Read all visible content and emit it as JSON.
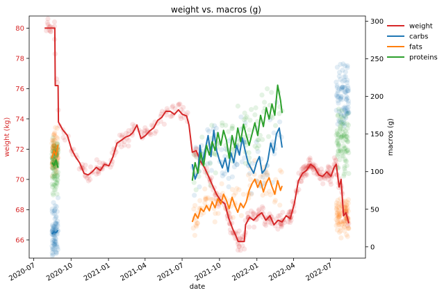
{
  "chart_data": {
    "type": "line",
    "title": "weight vs. macros (g)",
    "xlabel": "date",
    "ylabel_left": "weight (kg)",
    "ylabel_right": "macros (g)",
    "xlim": [
      "2020-06-20",
      "2022-09-25"
    ],
    "ylim_left": [
      64.8,
      80.8
    ],
    "ylim_right": [
      -15,
      307
    ],
    "x_ticks": [
      "2020-07",
      "2020-10",
      "2021-01",
      "2021-04",
      "2021-07",
      "2021-10",
      "2022-01",
      "2022-04",
      "2022-07"
    ],
    "y_ticks_left": [
      66,
      68,
      70,
      72,
      74,
      76,
      78,
      80
    ],
    "y_ticks_right": [
      0,
      50,
      100,
      150,
      200,
      250,
      300
    ],
    "grid": false,
    "legend_position": "outside-top-right",
    "colors": {
      "weight": "#d62728",
      "carbs": "#1f77b4",
      "fats": "#ff7f0e",
      "proteins": "#2ca02c",
      "left_axis_text": "#d62728"
    },
    "series": [
      {
        "name": "weight",
        "axis": "left",
        "color": "#d62728",
        "points": [
          [
            "2020-07-28",
            80.0
          ],
          [
            "2020-08-22",
            80.0
          ],
          [
            "2020-08-23",
            76.2
          ],
          [
            "2020-08-30",
            76.2
          ],
          [
            "2020-08-31",
            73.8
          ],
          [
            "2020-09-10",
            73.3
          ],
          [
            "2020-09-22",
            72.9
          ],
          [
            "2020-10-02",
            72.0
          ],
          [
            "2020-10-12",
            71.5
          ],
          [
            "2020-10-22",
            71.1
          ],
          [
            "2020-11-02",
            70.4
          ],
          [
            "2020-11-12",
            70.3
          ],
          [
            "2020-11-22",
            70.5
          ],
          [
            "2020-12-02",
            70.8
          ],
          [
            "2020-12-12",
            70.6
          ],
          [
            "2020-12-22",
            71.0
          ],
          [
            "2021-01-02",
            70.9
          ],
          [
            "2021-01-12",
            71.5
          ],
          [
            "2021-01-22",
            72.4
          ],
          [
            "2021-02-02",
            72.6
          ],
          [
            "2021-02-12",
            72.8
          ],
          [
            "2021-02-22",
            72.9
          ],
          [
            "2021-03-02",
            73.1
          ],
          [
            "2021-03-12",
            73.6
          ],
          [
            "2021-03-22",
            72.7
          ],
          [
            "2021-04-02",
            72.9
          ],
          [
            "2021-04-12",
            73.2
          ],
          [
            "2021-04-22",
            73.4
          ],
          [
            "2021-05-02",
            73.9
          ],
          [
            "2021-05-12",
            74.1
          ],
          [
            "2021-05-22",
            74.5
          ],
          [
            "2021-06-02",
            74.5
          ],
          [
            "2021-06-12",
            74.3
          ],
          [
            "2021-06-22",
            74.6
          ],
          [
            "2021-07-02",
            74.3
          ],
          [
            "2021-07-12",
            74.2
          ],
          [
            "2021-07-18",
            73.6
          ],
          [
            "2021-07-26",
            71.8
          ],
          [
            "2021-08-05",
            71.9
          ],
          [
            "2021-08-15",
            71.2
          ],
          [
            "2021-08-25",
            70.8
          ],
          [
            "2021-09-04",
            70.2
          ],
          [
            "2021-09-14",
            69.6
          ],
          [
            "2021-09-24",
            69.0
          ],
          [
            "2021-10-04",
            68.6
          ],
          [
            "2021-10-14",
            68.4
          ],
          [
            "2021-10-24",
            67.4
          ],
          [
            "2021-11-03",
            66.7
          ],
          [
            "2021-11-10",
            66.3
          ],
          [
            "2021-11-16",
            65.9
          ],
          [
            "2021-12-01",
            65.9
          ],
          [
            "2021-12-04",
            67.0
          ],
          [
            "2021-12-14",
            67.5
          ],
          [
            "2021-12-24",
            67.3
          ],
          [
            "2022-01-03",
            67.6
          ],
          [
            "2022-01-13",
            67.8
          ],
          [
            "2022-01-23",
            67.3
          ],
          [
            "2022-02-02",
            67.6
          ],
          [
            "2022-02-12",
            67.0
          ],
          [
            "2022-02-22",
            67.3
          ],
          [
            "2022-03-04",
            67.2
          ],
          [
            "2022-03-14",
            67.6
          ],
          [
            "2022-03-24",
            67.4
          ],
          [
            "2022-04-03",
            68.4
          ],
          [
            "2022-04-13",
            69.9
          ],
          [
            "2022-04-23",
            70.4
          ],
          [
            "2022-05-03",
            70.6
          ],
          [
            "2022-05-13",
            71.0
          ],
          [
            "2022-05-23",
            70.8
          ],
          [
            "2022-06-02",
            70.3
          ],
          [
            "2022-06-12",
            70.2
          ],
          [
            "2022-06-22",
            70.5
          ],
          [
            "2022-07-02",
            70.2
          ],
          [
            "2022-07-10",
            70.8
          ],
          [
            "2022-07-15",
            71.0
          ],
          [
            "2022-07-22",
            69.5
          ],
          [
            "2022-07-27",
            70.0
          ],
          [
            "2022-08-02",
            67.6
          ],
          [
            "2022-08-08",
            67.8
          ],
          [
            "2022-08-15",
            67.1
          ]
        ]
      },
      {
        "name": "carbs",
        "axis": "right",
        "color": "#1f77b4",
        "segments": [
          [
            [
              "2020-08-15",
              17
            ],
            [
              "2020-08-20",
              20
            ],
            [
              "2020-08-25",
              19
            ],
            [
              "2020-08-30",
              22
            ]
          ],
          [
            [
              "2021-07-26",
              110
            ],
            [
              "2021-08-02",
              90
            ],
            [
              "2021-08-09",
              100
            ],
            [
              "2021-08-14",
              135
            ],
            [
              "2021-08-20",
              112
            ],
            [
              "2021-08-27",
              130
            ],
            [
              "2021-09-03",
              148
            ],
            [
              "2021-09-10",
              120
            ],
            [
              "2021-09-17",
              155
            ],
            [
              "2021-09-24",
              128
            ],
            [
              "2021-10-01",
              115
            ],
            [
              "2021-10-08",
              105
            ],
            [
              "2021-10-15",
              118
            ],
            [
              "2021-10-22",
              100
            ],
            [
              "2021-10-29",
              125
            ],
            [
              "2021-11-05",
              112
            ],
            [
              "2021-11-12",
              135
            ],
            [
              "2021-11-19",
              122
            ],
            [
              "2021-11-26",
              145
            ],
            [
              "2021-12-03",
              128
            ],
            [
              "2021-12-10",
              112
            ],
            [
              "2021-12-17",
              105
            ],
            [
              "2021-12-24",
              98
            ],
            [
              "2021-12-31",
              112
            ],
            [
              "2022-01-07",
              120
            ],
            [
              "2022-01-14",
              98
            ],
            [
              "2022-01-21",
              103
            ],
            [
              "2022-01-28",
              115
            ],
            [
              "2022-02-04",
              138
            ],
            [
              "2022-02-11",
              125
            ],
            [
              "2022-02-18",
              150
            ],
            [
              "2022-02-25",
              158
            ],
            [
              "2022-03-04",
              132
            ]
          ]
        ]
      },
      {
        "name": "fats",
        "axis": "right",
        "color": "#ff7f0e",
        "segments": [
          [
            [
              "2020-08-15",
              118
            ],
            [
              "2020-08-20",
              128
            ],
            [
              "2020-08-25",
              122
            ],
            [
              "2020-08-30",
              136
            ]
          ],
          [
            [
              "2021-07-26",
              33
            ],
            [
              "2021-08-02",
              44
            ],
            [
              "2021-08-09",
              38
            ],
            [
              "2021-08-16",
              51
            ],
            [
              "2021-08-23",
              47
            ],
            [
              "2021-08-30",
              55
            ],
            [
              "2021-09-06",
              48
            ],
            [
              "2021-09-13",
              60
            ],
            [
              "2021-09-20",
              52
            ],
            [
              "2021-09-27",
              64
            ],
            [
              "2021-10-04",
              57
            ],
            [
              "2021-10-11",
              70
            ],
            [
              "2021-10-18",
              62
            ],
            [
              "2021-10-25",
              51
            ],
            [
              "2021-11-01",
              66
            ],
            [
              "2021-11-08",
              55
            ],
            [
              "2021-11-15",
              46
            ],
            [
              "2021-11-22",
              58
            ],
            [
              "2021-11-29",
              52
            ],
            [
              "2021-12-06",
              60
            ],
            [
              "2021-12-13",
              75
            ],
            [
              "2021-12-20",
              84
            ],
            [
              "2021-12-27",
              90
            ],
            [
              "2022-01-03",
              79
            ],
            [
              "2022-01-10",
              88
            ],
            [
              "2022-01-17",
              73
            ],
            [
              "2022-01-24",
              85
            ],
            [
              "2022-01-31",
              92
            ],
            [
              "2022-02-07",
              80
            ],
            [
              "2022-02-14",
              70
            ],
            [
              "2022-02-21",
              88
            ],
            [
              "2022-02-28",
              75
            ],
            [
              "2022-03-04",
              81
            ]
          ]
        ]
      },
      {
        "name": "proteins",
        "axis": "right",
        "color": "#2ca02c",
        "segments": [
          [
            [
              "2020-08-15",
              112
            ],
            [
              "2020-08-20",
              108
            ],
            [
              "2020-08-25",
              116
            ],
            [
              "2020-08-30",
              105
            ]
          ],
          [
            [
              "2021-07-26",
              88
            ],
            [
              "2021-08-02",
              112
            ],
            [
              "2021-08-09",
              98
            ],
            [
              "2021-08-16",
              125
            ],
            [
              "2021-08-23",
              108
            ],
            [
              "2021-08-30",
              135
            ],
            [
              "2021-09-06",
              122
            ],
            [
              "2021-09-13",
              140
            ],
            [
              "2021-09-20",
              128
            ],
            [
              "2021-09-27",
              152
            ],
            [
              "2021-10-04",
              135
            ],
            [
              "2021-10-11",
              155
            ],
            [
              "2021-10-18",
              142
            ],
            [
              "2021-10-25",
              118
            ],
            [
              "2021-11-01",
              148
            ],
            [
              "2021-11-08",
              132
            ],
            [
              "2021-11-15",
              158
            ],
            [
              "2021-11-22",
              140
            ],
            [
              "2021-11-29",
              163
            ],
            [
              "2021-12-06",
              148
            ],
            [
              "2021-12-13",
              135
            ],
            [
              "2021-12-20",
              150
            ],
            [
              "2021-12-27",
              165
            ],
            [
              "2022-01-03",
              148
            ],
            [
              "2022-01-10",
              175
            ],
            [
              "2022-01-17",
              160
            ],
            [
              "2022-01-24",
              185
            ],
            [
              "2022-01-31",
              170
            ],
            [
              "2022-02-07",
              190
            ],
            [
              "2022-02-14",
              175
            ],
            [
              "2022-02-21",
              215
            ],
            [
              "2022-02-28",
              195
            ],
            [
              "2022-03-04",
              178
            ]
          ]
        ]
      }
    ],
    "scatter": [
      {
        "name": "weight",
        "axis": "left",
        "color": "#d62728",
        "seed": 11,
        "count": 420,
        "spread": 0.55,
        "ranges": [
          [
            "2020-07-28",
            "2021-07-18"
          ],
          [
            "2021-07-26",
            "2022-03-10"
          ],
          [
            "2022-03-15",
            "2022-08-15"
          ]
        ]
      },
      {
        "name": "carbs",
        "axis": "right",
        "color": "#1f77b4",
        "seed": 23,
        "count": 260,
        "spread": 40,
        "ranges": [
          [
            "2020-08-15",
            "2020-08-30"
          ],
          [
            "2021-07-26",
            "2022-03-04"
          ],
          [
            "2022-07-15",
            "2022-08-15"
          ]
        ]
      },
      {
        "name": "fats",
        "axis": "right",
        "color": "#ff7f0e",
        "seed": 37,
        "count": 260,
        "spread": 25,
        "ranges": [
          [
            "2020-08-15",
            "2020-08-30"
          ],
          [
            "2021-07-26",
            "2022-03-04"
          ],
          [
            "2022-07-15",
            "2022-08-15"
          ]
        ]
      },
      {
        "name": "proteins",
        "axis": "right",
        "color": "#2ca02c",
        "seed": 53,
        "count": 260,
        "spread": 40,
        "ranges": [
          [
            "2020-08-15",
            "2020-08-30"
          ],
          [
            "2021-07-26",
            "2022-03-04"
          ],
          [
            "2022-07-15",
            "2022-08-15"
          ]
        ]
      }
    ]
  }
}
